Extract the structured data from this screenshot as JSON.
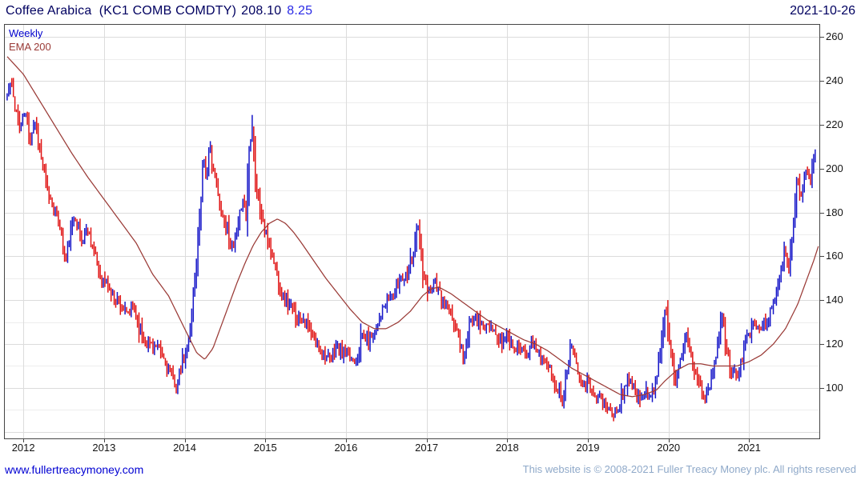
{
  "header": {
    "instrument": "Coffee Arabica  (KC1 COMB COMDTY)",
    "price": "208.10",
    "change": "8.25",
    "date": "2021-10-26"
  },
  "legend": {
    "timeframe": "Weekly",
    "ema": "EMA 200"
  },
  "footer": {
    "site_link": "www.fullertreacymoney.com",
    "copyright": "This website is © 2008-2021 Fuller Treacy Money plc. All rights reserved"
  },
  "colors": {
    "up_bar": "#1616c8",
    "down_bar": "#e01414",
    "ema_line": "#9a3a36",
    "grid_minor": "#ededed",
    "grid_major": "#dcdcdc",
    "frame": "#454545",
    "title_text": "#000060",
    "change_text": "#2a2ae6",
    "weekly_label": "#0000cc",
    "ema_label": "#9a3a36",
    "link": "#0000d2",
    "copyright": "#8fa9c9"
  },
  "chart_data": {
    "type": "ohlc-bar",
    "title": "Coffee Arabica (KC1 COMB COMDTY)",
    "timeframe": "Weekly",
    "last_price": 208.1,
    "change": 8.25,
    "as_of": "2021-10-26",
    "legend_entries": [
      "Weekly",
      "EMA 200"
    ],
    "xlim": [
      2011.77,
      2021.87
    ],
    "ylim": [
      77,
      265.5
    ],
    "y_ticks": [
      100,
      120,
      140,
      160,
      180,
      200,
      220,
      240,
      260
    ],
    "x_ticks": [
      2012,
      2013,
      2014,
      2015,
      2016,
      2017,
      2018,
      2019,
      2020,
      2021
    ],
    "grid_minor_step": 10,
    "y_axis_side": "right",
    "noise_seed": 11,
    "value_noise": 2.4,
    "bar_range_noise": 2.2,
    "price_keypoints": [
      [
        2011.78,
        231
      ],
      [
        2011.84,
        239
      ],
      [
        2011.9,
        228
      ],
      [
        2011.96,
        218
      ],
      [
        2012.02,
        226
      ],
      [
        2012.08,
        213
      ],
      [
        2012.14,
        222
      ],
      [
        2012.22,
        205
      ],
      [
        2012.3,
        190
      ],
      [
        2012.38,
        181
      ],
      [
        2012.46,
        174
      ],
      [
        2012.52,
        157
      ],
      [
        2012.58,
        169
      ],
      [
        2012.64,
        179
      ],
      [
        2012.72,
        167
      ],
      [
        2012.8,
        173
      ],
      [
        2012.88,
        161
      ],
      [
        2012.96,
        150
      ],
      [
        2013.04,
        147
      ],
      [
        2013.12,
        141
      ],
      [
        2013.2,
        139
      ],
      [
        2013.28,
        133
      ],
      [
        2013.36,
        137
      ],
      [
        2013.44,
        127
      ],
      [
        2013.52,
        121
      ],
      [
        2013.6,
        120
      ],
      [
        2013.68,
        117
      ],
      [
        2013.76,
        112
      ],
      [
        2013.84,
        105
      ],
      [
        2013.9,
        101
      ],
      [
        2013.96,
        110
      ],
      [
        2014.02,
        116
      ],
      [
        2014.08,
        132
      ],
      [
        2014.14,
        155
      ],
      [
        2014.19,
        180
      ],
      [
        2014.23,
        207
      ],
      [
        2014.27,
        195
      ],
      [
        2014.31,
        211
      ],
      [
        2014.36,
        199
      ],
      [
        2014.42,
        186
      ],
      [
        2014.48,
        177
      ],
      [
        2014.54,
        171
      ],
      [
        2014.6,
        162
      ],
      [
        2014.66,
        173
      ],
      [
        2014.72,
        187
      ],
      [
        2014.76,
        178
      ],
      [
        2014.8,
        210
      ],
      [
        2014.84,
        222
      ],
      [
        2014.88,
        193
      ],
      [
        2014.94,
        181
      ],
      [
        2015.0,
        171
      ],
      [
        2015.08,
        162
      ],
      [
        2015.16,
        149
      ],
      [
        2015.24,
        140
      ],
      [
        2015.32,
        137
      ],
      [
        2015.4,
        131
      ],
      [
        2015.48,
        132
      ],
      [
        2015.56,
        125
      ],
      [
        2015.64,
        120
      ],
      [
        2015.72,
        116
      ],
      [
        2015.8,
        112
      ],
      [
        2015.88,
        119
      ],
      [
        2015.96,
        116
      ],
      [
        2016.04,
        114
      ],
      [
        2016.12,
        113
      ],
      [
        2016.2,
        124
      ],
      [
        2016.28,
        121
      ],
      [
        2016.36,
        127
      ],
      [
        2016.44,
        134
      ],
      [
        2016.52,
        141
      ],
      [
        2016.6,
        143
      ],
      [
        2016.68,
        150
      ],
      [
        2016.76,
        152
      ],
      [
        2016.84,
        163
      ],
      [
        2016.89,
        174
      ],
      [
        2016.95,
        152
      ],
      [
        2017.02,
        144
      ],
      [
        2017.1,
        148
      ],
      [
        2017.18,
        141
      ],
      [
        2017.26,
        136
      ],
      [
        2017.34,
        130
      ],
      [
        2017.42,
        120
      ],
      [
        2017.46,
        113
      ],
      [
        2017.53,
        129
      ],
      [
        2017.6,
        134
      ],
      [
        2017.68,
        129
      ],
      [
        2017.76,
        128
      ],
      [
        2017.84,
        125
      ],
      [
        2017.92,
        121
      ],
      [
        2018.0,
        124
      ],
      [
        2018.08,
        119
      ],
      [
        2018.16,
        118
      ],
      [
        2018.24,
        117
      ],
      [
        2018.32,
        120
      ],
      [
        2018.4,
        116
      ],
      [
        2018.48,
        111
      ],
      [
        2018.56,
        105
      ],
      [
        2018.63,
        99
      ],
      [
        2018.69,
        95
      ],
      [
        2018.75,
        109
      ],
      [
        2018.79,
        122
      ],
      [
        2018.86,
        111
      ],
      [
        2018.93,
        103
      ],
      [
        2019.0,
        102
      ],
      [
        2019.08,
        98
      ],
      [
        2019.16,
        95
      ],
      [
        2019.24,
        91
      ],
      [
        2019.31,
        87
      ],
      [
        2019.38,
        91
      ],
      [
        2019.44,
        98
      ],
      [
        2019.5,
        107
      ],
      [
        2019.57,
        99
      ],
      [
        2019.64,
        95
      ],
      [
        2019.71,
        99
      ],
      [
        2019.78,
        95
      ],
      [
        2019.85,
        104
      ],
      [
        2019.91,
        121
      ],
      [
        2019.96,
        140
      ],
      [
        2020.03,
        116
      ],
      [
        2020.09,
        101
      ],
      [
        2020.15,
        112
      ],
      [
        2020.21,
        125
      ],
      [
        2020.27,
        117
      ],
      [
        2020.33,
        107
      ],
      [
        2020.39,
        103
      ],
      [
        2020.45,
        97
      ],
      [
        2020.51,
        100
      ],
      [
        2020.57,
        111
      ],
      [
        2020.63,
        125
      ],
      [
        2020.67,
        133
      ],
      [
        2020.73,
        115
      ],
      [
        2020.79,
        105
      ],
      [
        2020.85,
        108
      ],
      [
        2020.91,
        113
      ],
      [
        2020.97,
        123
      ],
      [
        2021.03,
        126
      ],
      [
        2021.09,
        129
      ],
      [
        2021.15,
        126
      ],
      [
        2021.21,
        130
      ],
      [
        2021.27,
        135
      ],
      [
        2021.33,
        143
      ],
      [
        2021.39,
        151
      ],
      [
        2021.45,
        164
      ],
      [
        2021.49,
        154
      ],
      [
        2021.54,
        171
      ],
      [
        2021.59,
        197
      ],
      [
        2021.63,
        186
      ],
      [
        2021.67,
        193
      ],
      [
        2021.71,
        201
      ],
      [
        2021.75,
        193
      ],
      [
        2021.79,
        204
      ],
      [
        2021.83,
        208.1
      ]
    ],
    "ema200_keypoints": [
      [
        2011.8,
        251
      ],
      [
        2012.0,
        243
      ],
      [
        2012.2,
        231
      ],
      [
        2012.4,
        219
      ],
      [
        2012.6,
        207
      ],
      [
        2012.8,
        196
      ],
      [
        2013.0,
        186
      ],
      [
        2013.2,
        176
      ],
      [
        2013.4,
        166
      ],
      [
        2013.6,
        152
      ],
      [
        2013.8,
        142
      ],
      [
        2014.0,
        127
      ],
      [
        2014.15,
        116
      ],
      [
        2014.25,
        113
      ],
      [
        2014.35,
        118
      ],
      [
        2014.45,
        128
      ],
      [
        2014.55,
        138
      ],
      [
        2014.65,
        148
      ],
      [
        2014.75,
        157
      ],
      [
        2014.85,
        165
      ],
      [
        2014.95,
        171
      ],
      [
        2015.05,
        175
      ],
      [
        2015.15,
        177
      ],
      [
        2015.25,
        175
      ],
      [
        2015.35,
        171
      ],
      [
        2015.45,
        166
      ],
      [
        2015.6,
        158
      ],
      [
        2015.75,
        150
      ],
      [
        2015.9,
        143
      ],
      [
        2016.05,
        136
      ],
      [
        2016.2,
        130
      ],
      [
        2016.35,
        127
      ],
      [
        2016.5,
        127
      ],
      [
        2016.65,
        130
      ],
      [
        2016.8,
        135
      ],
      [
        2016.95,
        142
      ],
      [
        2017.05,
        145
      ],
      [
        2017.15,
        146
      ],
      [
        2017.3,
        143
      ],
      [
        2017.45,
        139
      ],
      [
        2017.6,
        135
      ],
      [
        2017.75,
        131
      ],
      [
        2017.9,
        128
      ],
      [
        2018.05,
        125
      ],
      [
        2018.2,
        122
      ],
      [
        2018.35,
        120
      ],
      [
        2018.5,
        117
      ],
      [
        2018.65,
        113
      ],
      [
        2018.8,
        109
      ],
      [
        2018.95,
        106
      ],
      [
        2019.1,
        103
      ],
      [
        2019.25,
        100
      ],
      [
        2019.4,
        97
      ],
      [
        2019.55,
        96
      ],
      [
        2019.7,
        97
      ],
      [
        2019.85,
        99
      ],
      [
        2019.95,
        103
      ],
      [
        2020.1,
        108
      ],
      [
        2020.25,
        111
      ],
      [
        2020.4,
        111
      ],
      [
        2020.55,
        110
      ],
      [
        2020.7,
        110
      ],
      [
        2020.85,
        110
      ],
      [
        2021.0,
        112
      ],
      [
        2021.15,
        115
      ],
      [
        2021.3,
        120
      ],
      [
        2021.45,
        127
      ],
      [
        2021.6,
        138
      ],
      [
        2021.7,
        148
      ],
      [
        2021.8,
        158
      ],
      [
        2021.87,
        166
      ]
    ]
  }
}
